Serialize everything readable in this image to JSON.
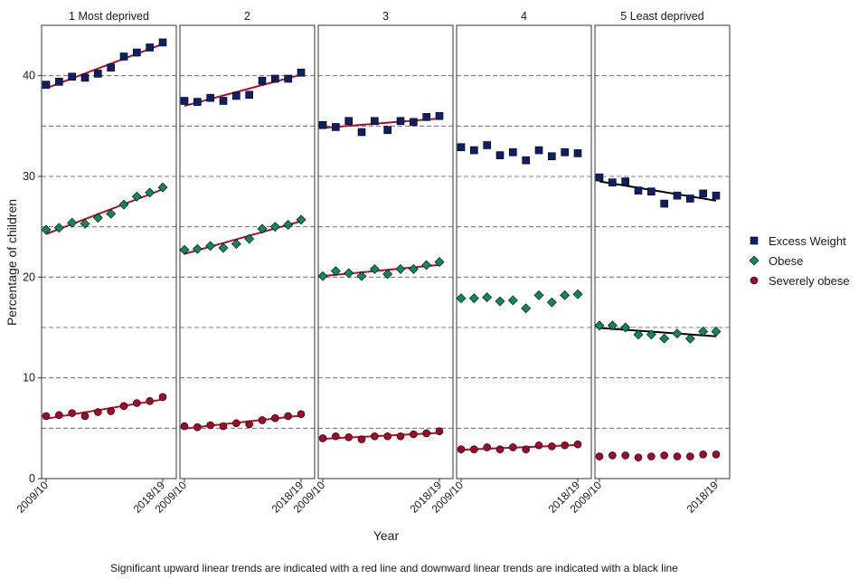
{
  "chart_data": {
    "type": "scatter",
    "ylabel": "Percentage of children",
    "xlabel": "Year",
    "caption": "Significant upward linear trends are indicated with a red line and downward linear trends are indicated with a black line",
    "ylim": [
      0,
      45
    ],
    "y_ticks": [
      0,
      10,
      20,
      30,
      40
    ],
    "dashed_gridlines": [
      5,
      10,
      15,
      20,
      25,
      30,
      35,
      40
    ],
    "x_first_label": "2009/10",
    "x_last_label": "2018/19",
    "n_years": 10,
    "legend": [
      {
        "name": "Excess Weight",
        "marker": "square",
        "color": "#0d1f6b"
      },
      {
        "name": "Obese",
        "marker": "diamond",
        "color": "#0a8a5a"
      },
      {
        "name": "Severely obese",
        "marker": "circle",
        "color": "#a0072a"
      }
    ],
    "colors": {
      "upward_trend": "#b01020",
      "downward_trend": "#000000",
      "dashed_grid": "#555555"
    },
    "panels": [
      {
        "title": "1 Most deprived",
        "series": [
          {
            "name": "Excess Weight",
            "values": [
              39.1,
              39.4,
              39.9,
              39.8,
              40.2,
              40.8,
              41.9,
              42.3,
              42.8,
              43.3
            ],
            "trend": "up"
          },
          {
            "name": "Obese",
            "values": [
              24.7,
              24.9,
              25.4,
              25.3,
              25.9,
              26.3,
              27.2,
              28.0,
              28.4,
              28.9
            ],
            "trend": "up"
          },
          {
            "name": "Severely obese",
            "values": [
              6.2,
              6.3,
              6.5,
              6.2,
              6.6,
              6.7,
              7.2,
              7.5,
              7.7,
              8.1
            ],
            "trend": "up"
          }
        ]
      },
      {
        "title": "2",
        "series": [
          {
            "name": "Excess Weight",
            "values": [
              37.5,
              37.4,
              37.8,
              37.5,
              38.0,
              38.1,
              39.5,
              39.7,
              39.7,
              40.3
            ],
            "trend": "up"
          },
          {
            "name": "Obese",
            "values": [
              22.7,
              22.8,
              23.1,
              22.9,
              23.3,
              23.8,
              24.8,
              25.0,
              25.2,
              25.7
            ],
            "trend": "up"
          },
          {
            "name": "Severely obese",
            "values": [
              5.2,
              5.1,
              5.3,
              5.2,
              5.5,
              5.4,
              5.8,
              6.0,
              6.2,
              6.4
            ],
            "trend": "up"
          }
        ]
      },
      {
        "title": "3",
        "series": [
          {
            "name": "Excess Weight",
            "values": [
              35.1,
              34.9,
              35.5,
              34.4,
              35.5,
              34.6,
              35.5,
              35.4,
              35.9,
              36.0
            ],
            "trend": "up"
          },
          {
            "name": "Obese",
            "values": [
              20.1,
              20.6,
              20.4,
              20.1,
              20.8,
              20.3,
              20.8,
              20.8,
              21.2,
              21.5
            ],
            "trend": "up"
          },
          {
            "name": "Severely obese",
            "values": [
              4.0,
              4.2,
              4.1,
              3.9,
              4.2,
              4.2,
              4.2,
              4.4,
              4.5,
              4.7
            ],
            "trend": "up"
          }
        ]
      },
      {
        "title": "4",
        "series": [
          {
            "name": "Excess Weight",
            "values": [
              32.9,
              32.6,
              33.1,
              32.1,
              32.4,
              31.6,
              32.6,
              32.0,
              32.4,
              32.3
            ],
            "trend": "none"
          },
          {
            "name": "Obese",
            "values": [
              17.9,
              17.9,
              18.0,
              17.6,
              17.7,
              16.9,
              18.2,
              17.5,
              18.2,
              18.3
            ],
            "trend": "none"
          },
          {
            "name": "Severely obese",
            "values": [
              2.9,
              2.9,
              3.1,
              2.9,
              3.1,
              2.9,
              3.3,
              3.2,
              3.3,
              3.4
            ],
            "trend": "up"
          }
        ]
      },
      {
        "title": "5 Least deprived",
        "series": [
          {
            "name": "Excess Weight",
            "values": [
              29.9,
              29.4,
              29.5,
              28.6,
              28.5,
              27.3,
              28.1,
              27.8,
              28.3,
              28.1
            ],
            "trend": "down"
          },
          {
            "name": "Obese",
            "values": [
              15.2,
              15.2,
              15.0,
              14.3,
              14.3,
              13.9,
              14.4,
              13.9,
              14.6,
              14.6
            ],
            "trend": "down"
          },
          {
            "name": "Severely obese",
            "values": [
              2.2,
              2.3,
              2.3,
              2.1,
              2.2,
              2.3,
              2.2,
              2.2,
              2.4,
              2.4
            ],
            "trend": "none"
          }
        ]
      }
    ]
  }
}
